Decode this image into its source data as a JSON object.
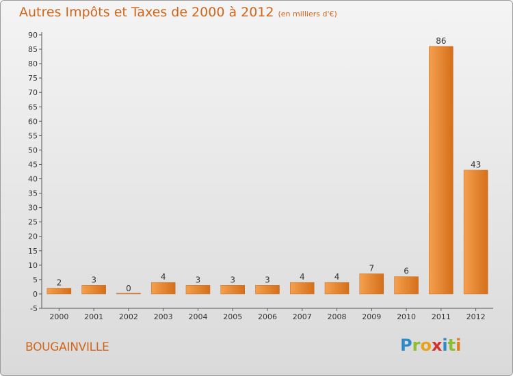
{
  "header": {
    "title": "Autres Impôts et Taxes de 2000 à 2012",
    "unit": "(en milliers d'€)"
  },
  "footer": {
    "place": "BOUGAINVILLE",
    "brand": "Proxiti"
  },
  "colors": {
    "title": "#d0661c",
    "bar_light": "#f5a04e",
    "bar_dark": "#d46f1a",
    "background_top": "#f4f4f4",
    "background_bottom": "#dadada"
  },
  "chart_data": {
    "type": "bar",
    "title": "Autres Impôts et Taxes de 2000 à 2012",
    "subtitle": "(en milliers d'€)",
    "xlabel": "",
    "ylabel": "",
    "categories": [
      "2000",
      "2001",
      "2002",
      "2003",
      "2004",
      "2005",
      "2006",
      "2007",
      "2008",
      "2009",
      "2010",
      "2011",
      "2012"
    ],
    "values": [
      2,
      3,
      0,
      4,
      3,
      3,
      3,
      4,
      4,
      7,
      6,
      86,
      43
    ],
    "ylim": [
      -5,
      90
    ],
    "yticks": [
      -5,
      0,
      5,
      10,
      15,
      20,
      25,
      30,
      35,
      40,
      45,
      50,
      55,
      60,
      65,
      70,
      75,
      80,
      85,
      90
    ],
    "grid": false,
    "legend": "none"
  }
}
